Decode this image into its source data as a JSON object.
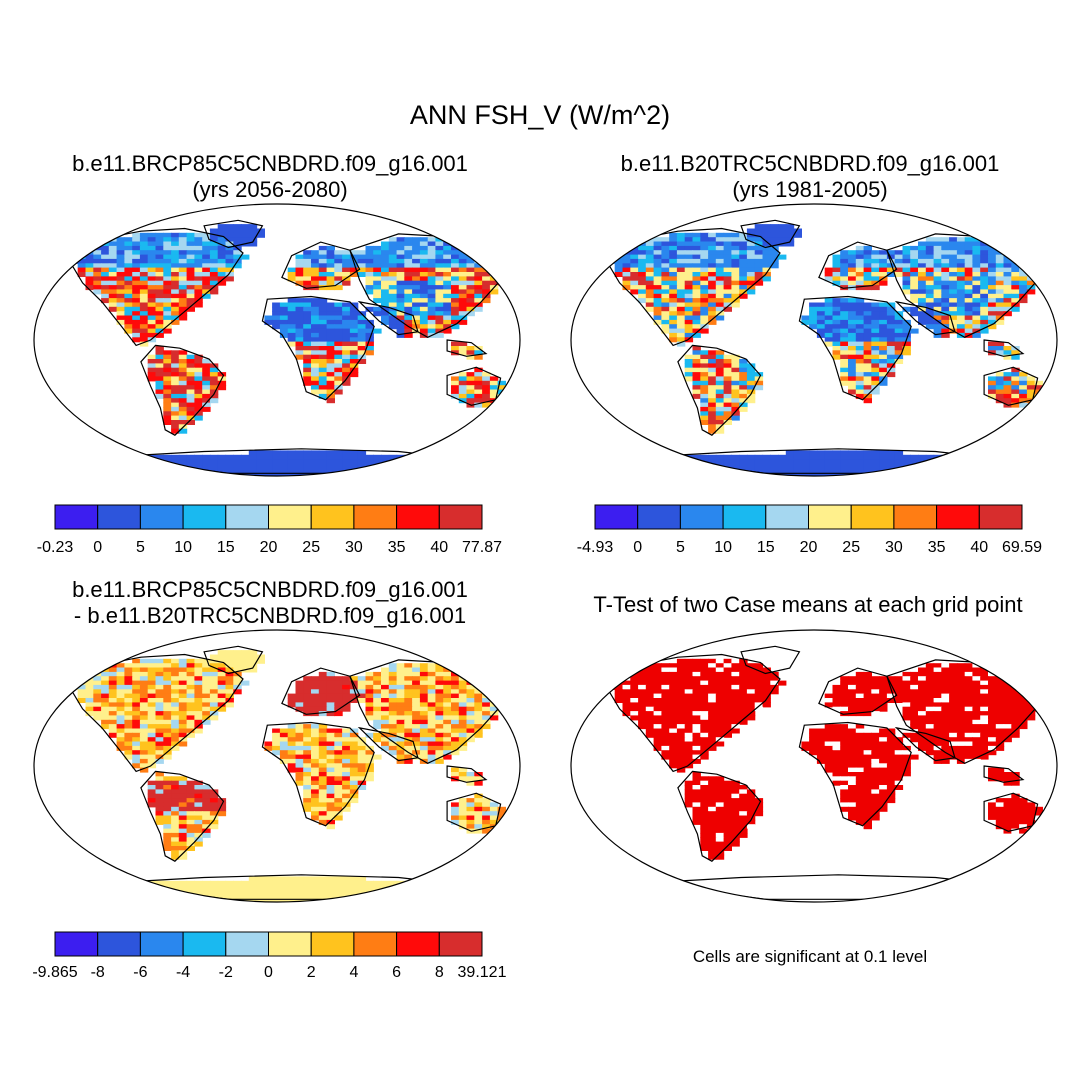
{
  "title": "ANN FSH_V (W/m^2)",
  "panels": [
    {
      "title_line1": "b.e11.BRCP85C5CNBDRD.f09_g16.001",
      "title_line2": "(yrs 2056-2080)",
      "kind": "future"
    },
    {
      "title_line1": "b.e11.B20TRC5CNBDRD.f09_g16.001",
      "title_line2": "(yrs 1981-2005)",
      "kind": "past"
    },
    {
      "title_line1": "b.e11.BRCP85C5CNBDRD.f09_g16.001",
      "title_line2": "- b.e11.B20TRC5CNBDRD.f09_g16.001",
      "kind": "diff"
    },
    {
      "title_line1": "T-Test of two Case means at each grid point",
      "title_line2": "",
      "kind": "ttest"
    }
  ],
  "colorbars": [
    {
      "labels": [
        "-0.23",
        "0",
        "5",
        "10",
        "15",
        "20",
        "25",
        "30",
        "35",
        "40",
        "77.87"
      ]
    },
    {
      "labels": [
        "-4.93",
        "0",
        "5",
        "10",
        "15",
        "20",
        "25",
        "30",
        "35",
        "40",
        "69.59"
      ]
    },
    {
      "labels": [
        "-9.865",
        "-8",
        "-6",
        "-4",
        "-2",
        "0",
        "2",
        "4",
        "6",
        "8",
        "39.121"
      ]
    }
  ],
  "palette": [
    "#3c1ef0",
    "#2d55dc",
    "#2a87ee",
    "#1ab9f0",
    "#a5d7f0",
    "#fff08c",
    "#ffc31e",
    "#ff7d14",
    "#ff0a0a",
    "#d72d2d"
  ],
  "significance_color": "#ee0000",
  "significance_note": "Cells are significant at 0.1 level"
}
